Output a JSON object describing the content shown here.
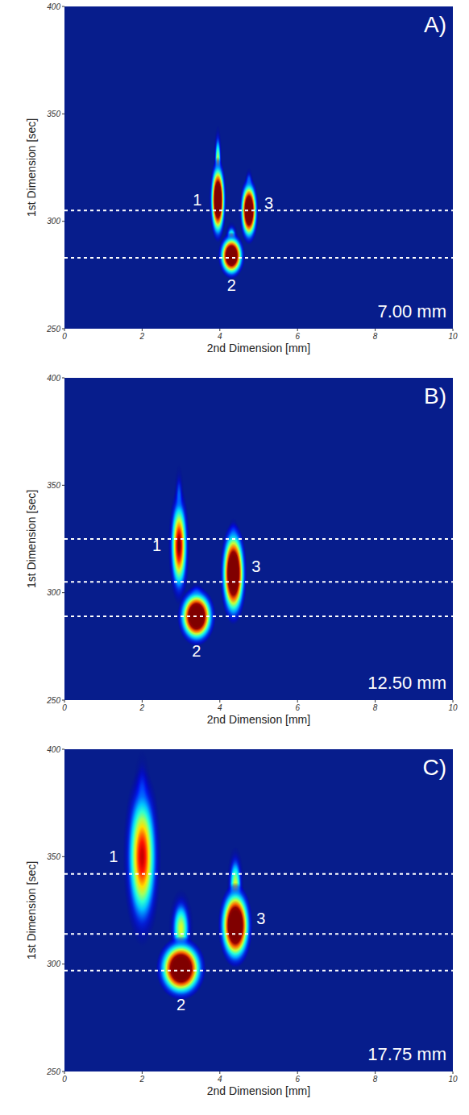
{
  "chart_data": [
    {
      "type": "heatmap",
      "panel_label": "A)",
      "annotation": "7.00 mm",
      "x_label": "2nd Dimension [mm]",
      "y_label": "1st Dimension [sec]",
      "xlim": [
        0,
        10
      ],
      "ylim": [
        250,
        400
      ],
      "xticks": [
        0,
        2,
        4,
        6,
        8,
        10
      ],
      "yticks": [
        250,
        300,
        350,
        400
      ],
      "dashed_lines": [
        305,
        283
      ],
      "peaks": [
        {
          "label": "1",
          "x": 3.95,
          "y": 310,
          "x_width": 0.22,
          "y_height": 20,
          "tail_top": 345,
          "intensity": 1
        },
        {
          "label": "2",
          "x": 4.3,
          "y": 284,
          "x_width": 0.35,
          "y_height": 11,
          "tail_top": 300,
          "intensity": 1
        },
        {
          "label": "3",
          "x": 4.75,
          "y": 305,
          "x_width": 0.25,
          "y_height": 16,
          "tail_top": 325,
          "intensity": 1
        }
      ]
    },
    {
      "type": "heatmap",
      "panel_label": "B)",
      "annotation": "12.50 mm",
      "x_label": "2nd Dimension [mm]",
      "y_label": "1st Dimension [sec]",
      "xlim": [
        0,
        10
      ],
      "ylim": [
        250,
        400
      ],
      "xticks": [
        0,
        2,
        4,
        6,
        8,
        10
      ],
      "yticks": [
        250,
        300,
        350,
        400
      ],
      "dashed_lines": [
        325,
        305,
        289
      ],
      "peaks": [
        {
          "label": "1",
          "x": 2.95,
          "y": 322,
          "x_width": 0.28,
          "y_height": 28,
          "tail_top": 360,
          "intensity": 0.6
        },
        {
          "label": "2",
          "x": 3.4,
          "y": 289,
          "x_width": 0.5,
          "y_height": 14,
          "tail_top": 305,
          "intensity": 1
        },
        {
          "label": "3",
          "x": 4.35,
          "y": 309,
          "x_width": 0.35,
          "y_height": 24,
          "tail_top": 335,
          "intensity": 1
        }
      ]
    },
    {
      "type": "heatmap",
      "panel_label": "C)",
      "annotation": "17.75 mm",
      "x_label": "2nd Dimension [mm]",
      "y_label": "1st Dimension [sec]",
      "xlim": [
        0,
        10
      ],
      "ylim": [
        250,
        400
      ],
      "xticks": [
        0,
        2,
        4,
        6,
        8,
        10
      ],
      "yticks": [
        250,
        300,
        350,
        400
      ],
      "dashed_lines": [
        342,
        314,
        297
      ],
      "peaks": [
        {
          "label": "1",
          "x": 2.0,
          "y": 350,
          "x_width": 0.5,
          "y_height": 42,
          "tail_top": 400,
          "intensity": 0.55
        },
        {
          "label": "2",
          "x": 3.0,
          "y": 298,
          "x_width": 0.65,
          "y_height": 15,
          "tail_top": 335,
          "intensity": 1
        },
        {
          "label": "3",
          "x": 4.4,
          "y": 318,
          "x_width": 0.45,
          "y_height": 20,
          "tail_top": 355,
          "intensity": 1
        }
      ]
    }
  ]
}
